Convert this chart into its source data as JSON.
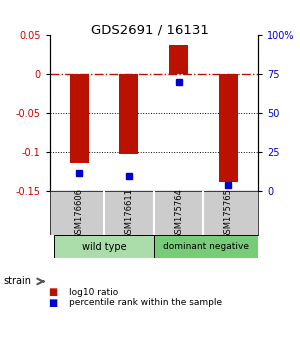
{
  "title": "GDS2691 / 16131",
  "samples": [
    "GSM176606",
    "GSM176611",
    "GSM175764",
    "GSM175765"
  ],
  "log10_ratio": [
    -0.113,
    -0.102,
    0.038,
    -0.138
  ],
  "percentile_rank": [
    12,
    10,
    70,
    4
  ],
  "ylim_left": [
    -0.15,
    0.05
  ],
  "ylim_right": [
    0,
    100
  ],
  "yticks_left": [
    0.05,
    0,
    -0.05,
    -0.1,
    -0.15
  ],
  "ytick_labels_left": [
    "0.05",
    "0",
    "-0.05",
    "-0.1",
    "-0.15"
  ],
  "yticks_right": [
    100,
    75,
    50,
    25,
    0
  ],
  "ytick_labels_right": [
    "100%",
    "75",
    "50",
    "25",
    "0"
  ],
  "bar_color": "#bb1100",
  "dot_color": "#0000cc",
  "wild_type_color": "#aaddaa",
  "dominant_color": "#77cc77",
  "sample_bg_color": "#cccccc",
  "strain_label": "strain",
  "legend_bar": "log10 ratio",
  "legend_dot": "percentile rank within the sample",
  "background_color": "#ffffff",
  "hline_zero_color": "#bb1100",
  "hline_dotted_color": "#000000",
  "label_color_left": "#cc0000",
  "label_color_right": "#0000cc"
}
